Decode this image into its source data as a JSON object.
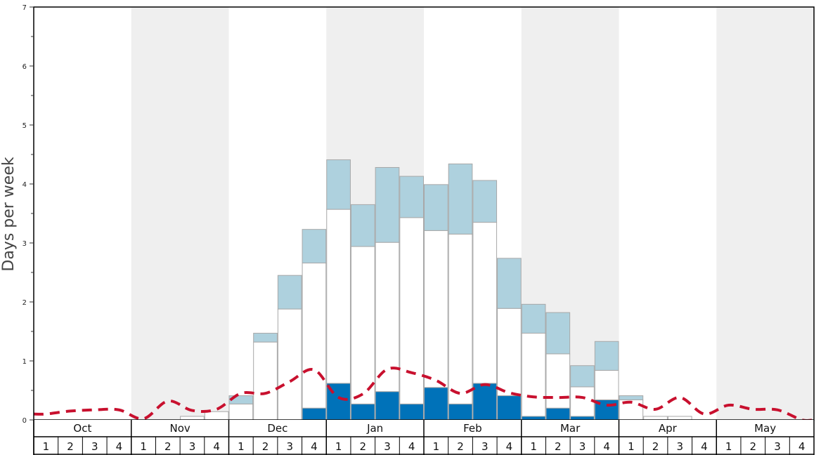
{
  "chart_data": {
    "type": "bar",
    "ylabel": "Days per week",
    "ylim": [
      0,
      7
    ],
    "yticks": [
      "0",
      "1",
      "2",
      "3",
      "4",
      "5",
      "6",
      "7"
    ],
    "months": [
      "Oct",
      "Nov",
      "Dec",
      "Jan",
      "Feb",
      "Mar",
      "Apr",
      "May"
    ],
    "week_labels": [
      "1",
      "2",
      "3",
      "4"
    ],
    "stacked": true,
    "grid": false,
    "legend": "none",
    "colors": {
      "dark_segment": "#0072b9",
      "white_segment": "#ffffff",
      "light_segment": "#aed1de",
      "trend_line": "#c8102e",
      "alt_month_band": "#efefef",
      "bar_border": "#a8a8a8"
    },
    "series": [
      {
        "values": [
          0,
          0,
          0,
          0,
          0,
          0,
          0,
          0,
          0,
          0,
          0,
          0.2,
          0.62,
          0.27,
          0.48,
          0.27,
          0.55,
          0.27,
          0.62,
          0.41,
          0.06,
          0.2,
          0.06,
          0.34,
          0,
          0,
          0,
          0,
          0,
          0,
          0,
          0
        ]
      },
      {
        "values": [
          0,
          0,
          0,
          0,
          0,
          0,
          0.06,
          0.14,
          0.27,
          1.32,
          1.88,
          2.46,
          2.95,
          2.67,
          2.53,
          3.16,
          2.66,
          2.88,
          2.73,
          1.48,
          1.41,
          0.92,
          0.5,
          0.5,
          0.34,
          0.06,
          0.06,
          0,
          0,
          0,
          0,
          0
        ]
      },
      {
        "values": [
          0,
          0,
          0,
          0,
          0,
          0,
          0,
          0,
          0.14,
          0.15,
          0.57,
          0.57,
          0.84,
          0.71,
          1.27,
          0.7,
          0.78,
          1.19,
          0.71,
          0.85,
          0.49,
          0.7,
          0.36,
          0.49,
          0.07,
          0,
          0,
          0,
          0,
          0,
          0,
          0
        ]
      }
    ],
    "trend": [
      0.1,
      0.15,
      0.17,
      0.17,
      0.02,
      0.32,
      0.16,
      0.18,
      0.45,
      0.45,
      0.65,
      0.85,
      0.38,
      0.44,
      0.86,
      0.8,
      0.67,
      0.45,
      0.6,
      0.46,
      0.39,
      0.38,
      0.38,
      0.25,
      0.3,
      0.18,
      0.38,
      0.1,
      0.25,
      0.18,
      0.17,
      0.0
    ]
  }
}
